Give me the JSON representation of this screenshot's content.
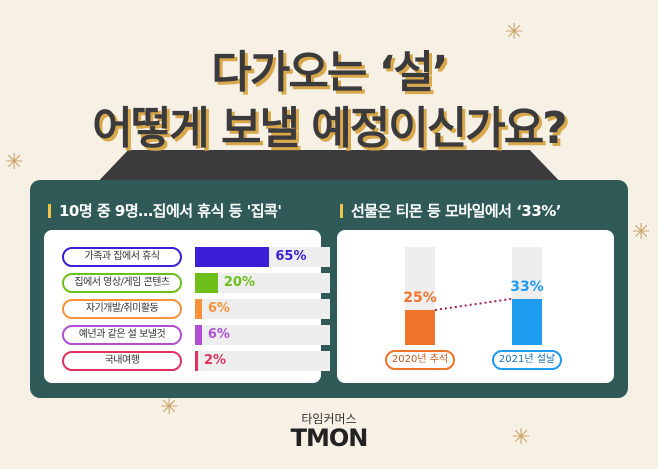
{
  "title": {
    "line1": "다가오는 ‘설’",
    "line2": "어떻게 보낼 예정이신가요?"
  },
  "chart_data": [
    {
      "type": "bar",
      "orientation": "horizontal",
      "title": "10명 중 9명…집에서 휴식 등 '집콕'",
      "categories": [
        "가족과 집에서 휴식",
        "집에서 영상/게임 콘텐츠",
        "자기개발/취미활동",
        "예년과 같은 설 보낼것",
        "국내여행"
      ],
      "values": [
        65,
        20,
        6,
        6,
        2
      ],
      "value_labels": [
        "65%",
        "20%",
        "6%",
        "6%",
        "2%"
      ],
      "colors": [
        "#3a1fd6",
        "#6fbf1a",
        "#f5923a",
        "#b04fd1",
        "#e0325f"
      ],
      "xlim": [
        0,
        118
      ]
    },
    {
      "type": "bar",
      "orientation": "vertical",
      "title": "선물은 티몬 등 모바일에서 ‘33%’",
      "categories": [
        "2020년 추석",
        "2021년 설날"
      ],
      "values": [
        25,
        33
      ],
      "value_labels": [
        "25%",
        "33%"
      ],
      "colors": [
        "#f0732a",
        "#1f9bf0"
      ],
      "ylim": [
        0,
        70
      ],
      "connector": "dotted"
    }
  ],
  "logo": {
    "sub": "타임커머스",
    "brand": "TMON"
  }
}
